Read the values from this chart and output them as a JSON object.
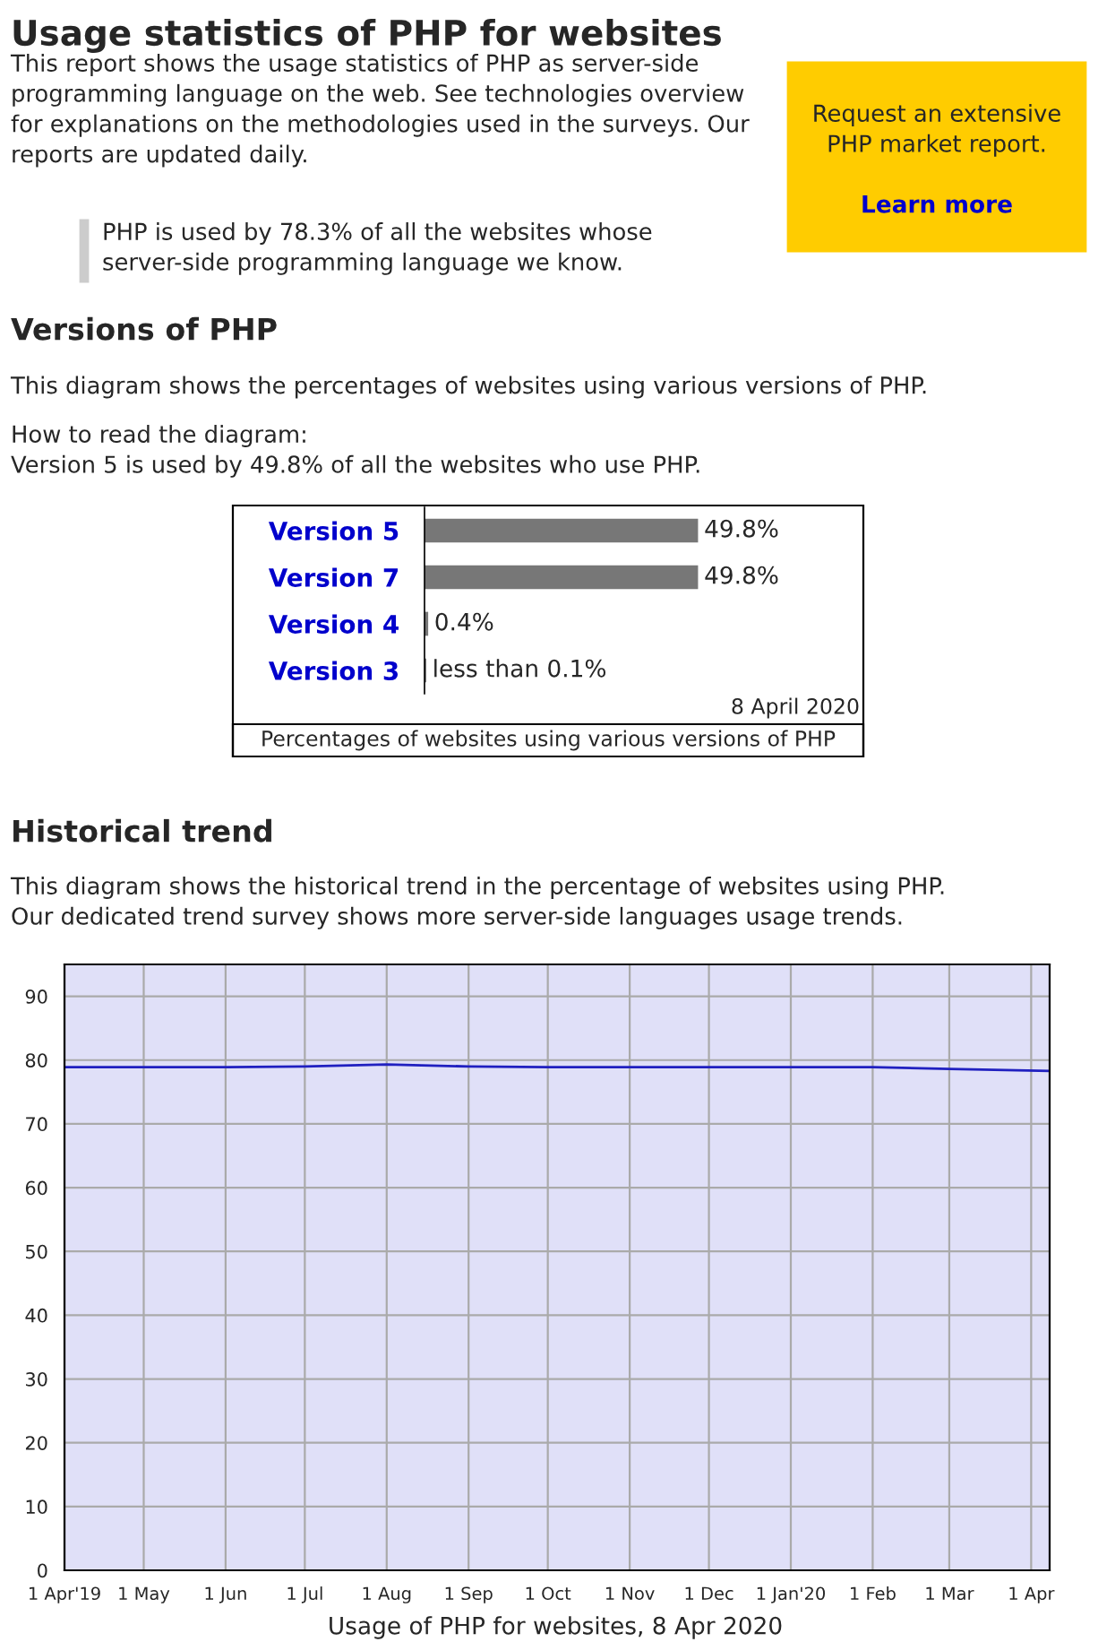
{
  "chart_data": [
    {
      "type": "bar",
      "orientation": "horizontal",
      "title": "Versions of PHP",
      "xlabel": "Percentages of websites using various versions of PHP",
      "categories": [
        "Version 5",
        "Version 7",
        "Version 4",
        "Version 3"
      ],
      "values": [
        49.8,
        49.8,
        0.4,
        0.05
      ],
      "value_labels": [
        "49.8%",
        "49.8%",
        "0.4%",
        "less than 0.1%"
      ],
      "color": "#777777",
      "annotations": [
        "Usage statistics of PHP for websites",
        "This report shows the usage statistics of PHP as server-side\nprogramming language on the web. See technologies overview\nfor explanations on the methodologies used in the surveys. Our\nreports are updated daily.",
        "PHP is used by 78.3% of all the websites whose\nserver-side programming language we know.",
        "Request an extensive\nPHP market report.",
        "Learn more",
        "This diagram shows the percentages of websites using various versions of PHP.",
        "How to read the diagram:\nVersion 5 is used by 49.8% of all the websites who use PHP.",
        "8 April 2020"
      ]
    },
    {
      "type": "line",
      "title": "Historical trend",
      "subtitle": "This diagram shows the historical trend in the percentage of websites using PHP.\nOur dedicated trend survey shows more server-side languages usage trends.",
      "xlabel": "Usage of PHP for websites, 8 Apr 2020",
      "x": [
        "2019-04-01",
        "2019-05-01",
        "2019-06-01",
        "2019-07-01",
        "2019-08-01",
        "2019-09-01",
        "2019-10-01",
        "2019-11-01",
        "2019-12-01",
        "2020-01-01",
        "2020-02-01",
        "2020-03-01",
        "2020-04-08"
      ],
      "series": [
        {
          "color": "#2020c0",
          "values": [
            78.9,
            78.9,
            78.9,
            79.0,
            79.3,
            79.0,
            78.9,
            78.9,
            78.9,
            78.9,
            78.9,
            78.6,
            78.3
          ]
        }
      ],
      "xlim": [
        "2019-04-01",
        "2020-04-08"
      ],
      "xticks": [
        {
          "value": "2019-04-01",
          "label": "1 Apr'19"
        },
        {
          "value": "2019-05-01",
          "label": "1 May"
        },
        {
          "value": "2019-06-01",
          "label": "1 Jun"
        },
        {
          "value": "2019-07-01",
          "label": "1 Jul"
        },
        {
          "value": "2019-08-01",
          "label": "1 Aug"
        },
        {
          "value": "2019-09-01",
          "label": "1 Sep"
        },
        {
          "value": "2019-10-01",
          "label": "1 Oct"
        },
        {
          "value": "2019-11-01",
          "label": "1 Nov"
        },
        {
          "value": "2019-12-01",
          "label": "1 Dec"
        },
        {
          "value": "2020-01-01",
          "label": "1 Jan'20"
        },
        {
          "value": "2020-02-01",
          "label": "1 Feb"
        },
        {
          "value": "2020-03-01",
          "label": "1 Mar"
        },
        {
          "value": "2020-04-01",
          "label": "1 Apr"
        }
      ],
      "ylim": [
        0,
        95
      ],
      "yticks": [
        0,
        10,
        20,
        30,
        40,
        50,
        60,
        70,
        80,
        90
      ],
      "grid": true,
      "legend": false,
      "marker": "none",
      "line_style": "solid"
    }
  ]
}
